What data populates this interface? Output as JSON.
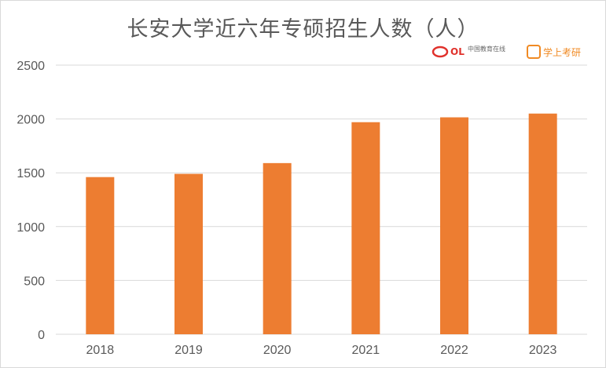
{
  "chart_data": {
    "type": "bar",
    "title": "长安大学近六年专硕招生人数（人）",
    "categories": [
      "2018",
      "2019",
      "2020",
      "2021",
      "2022",
      "2023"
    ],
    "values": [
      1460,
      1490,
      1590,
      1970,
      2015,
      2050
    ],
    "ylim": [
      0,
      2500
    ],
    "yticks": [
      0,
      500,
      1000,
      1500,
      2000,
      2500
    ],
    "grid": true,
    "bar_color": "#ed7d31",
    "grid_color": "#d9d9d9"
  },
  "watermarks": {
    "eol": "中国教育在线",
    "xk": "学上考研"
  }
}
